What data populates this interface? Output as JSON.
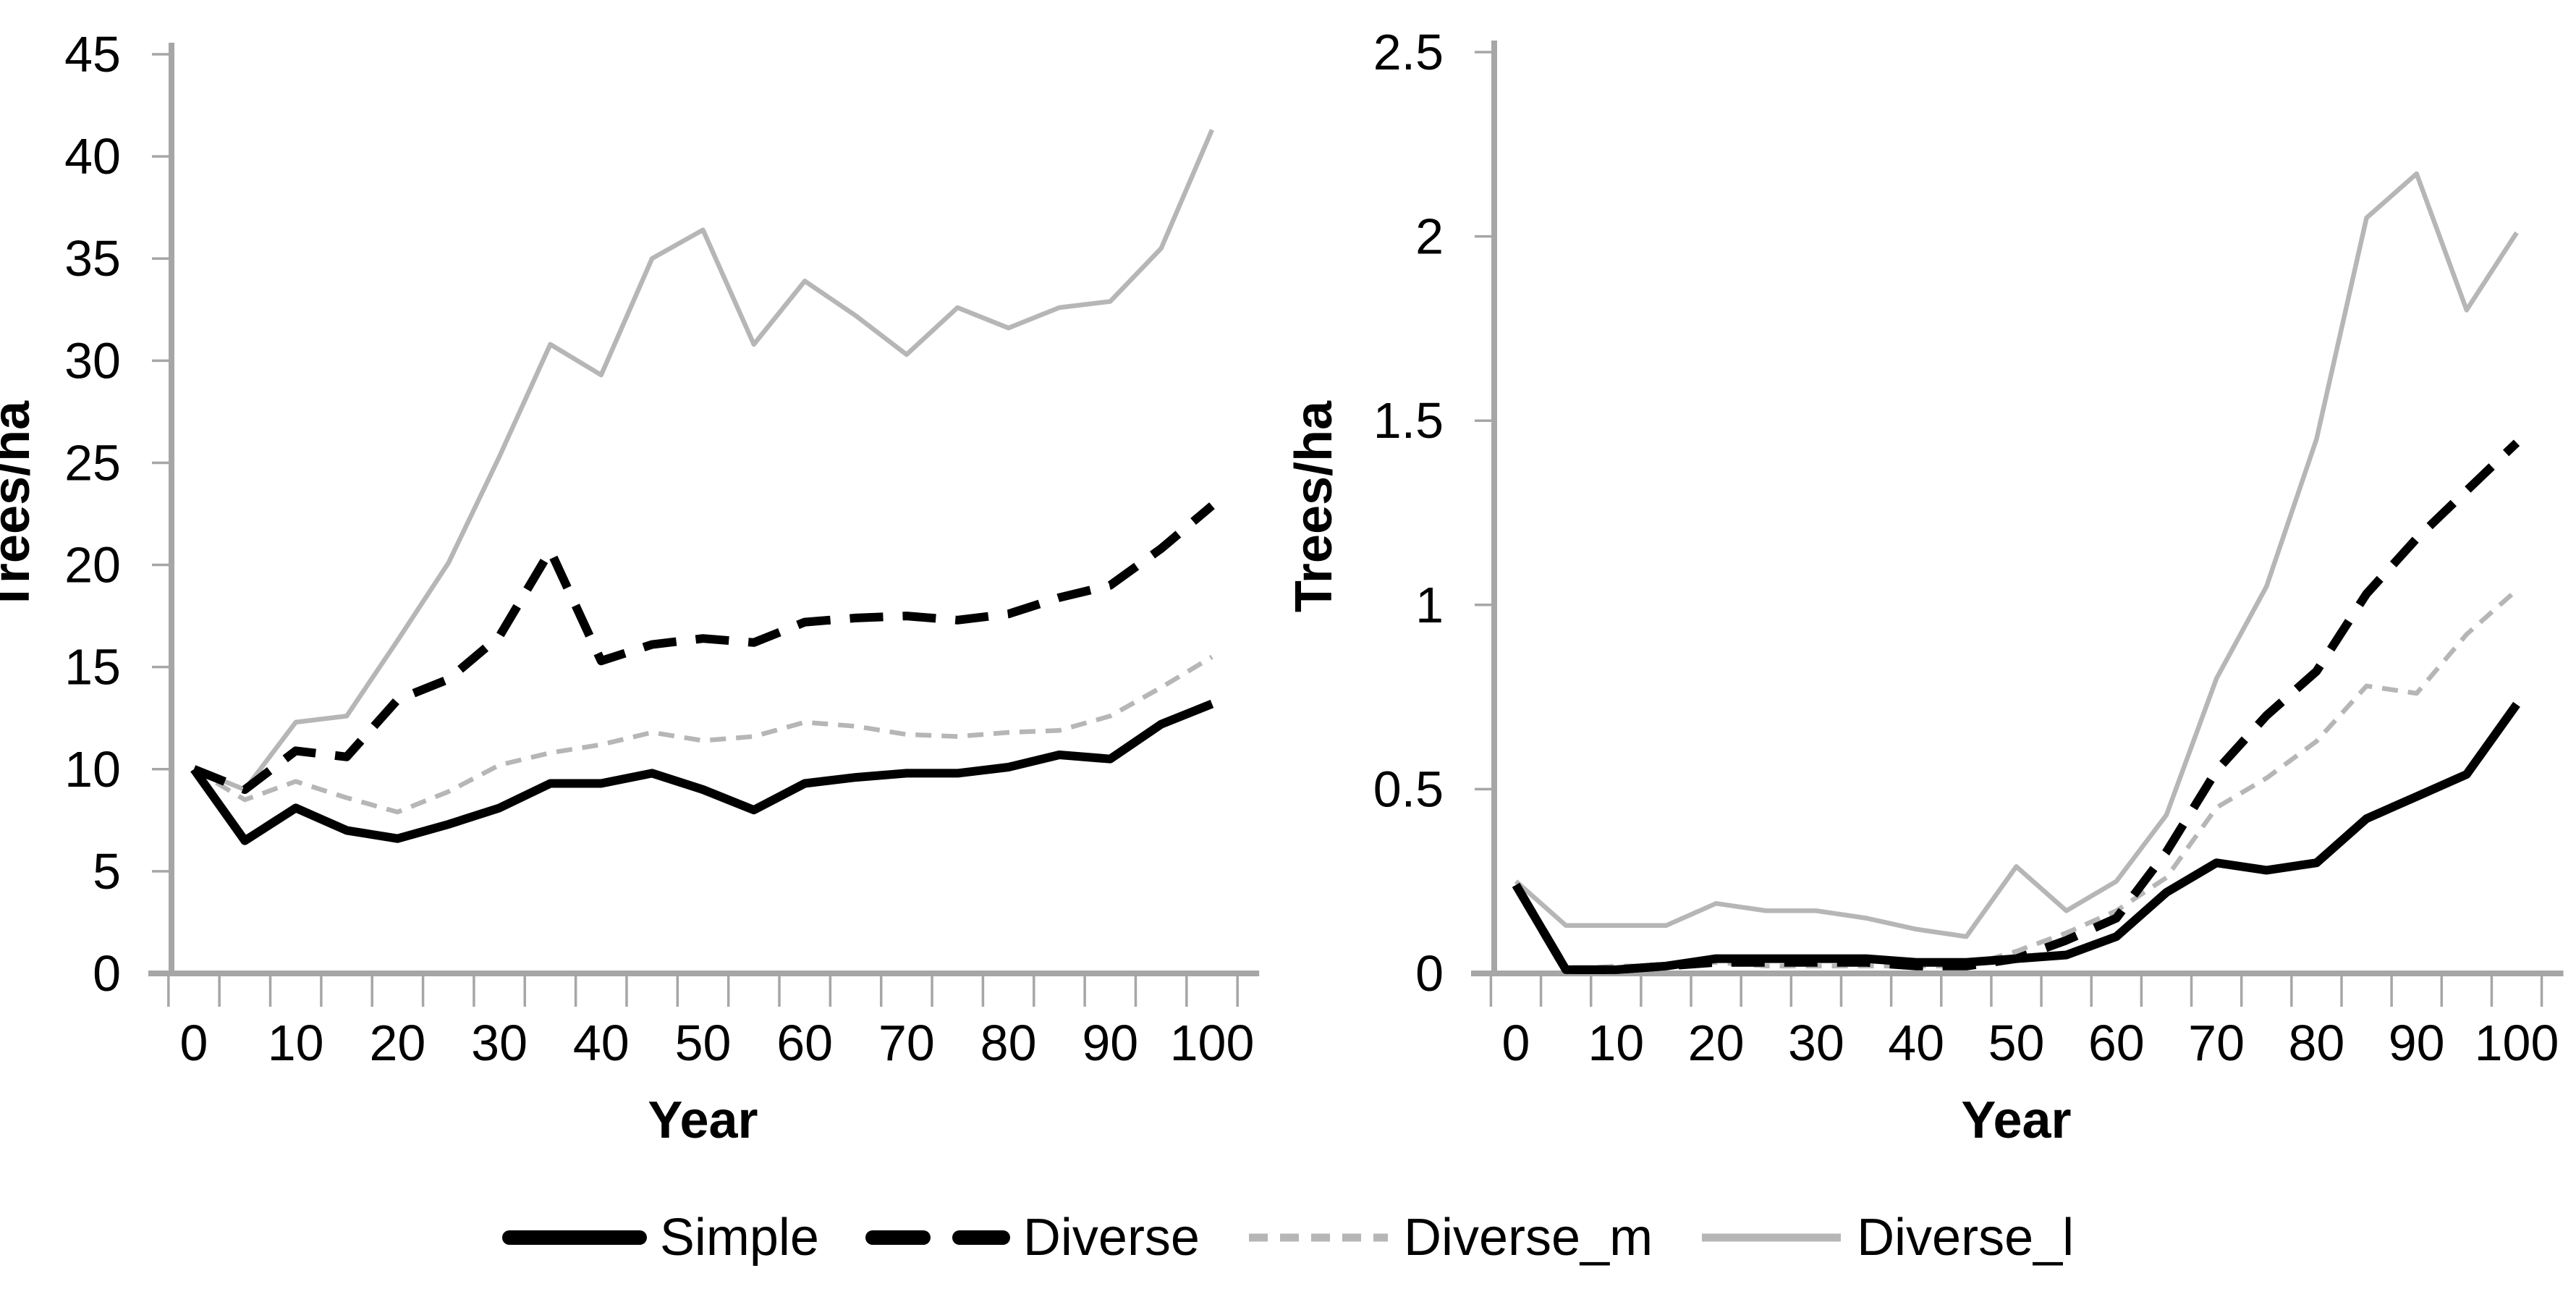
{
  "figure": {
    "background": "#ffffff"
  },
  "axis_style": {
    "axis_color": "#a6a6a6",
    "tick_color": "#a6a6a6",
    "tick_label_color": "#000000"
  },
  "chart_data": {
    "type": "line",
    "xlabel": "Year",
    "ylabel": "Trees/ha",
    "grid": false,
    "legend": {
      "position": "bottom",
      "entries": [
        "Simple",
        "Diverse",
        "Diverse_m",
        "Diverse_l"
      ]
    },
    "x": [
      0,
      5,
      10,
      15,
      20,
      25,
      30,
      35,
      40,
      45,
      50,
      55,
      60,
      65,
      70,
      75,
      80,
      85,
      90,
      95,
      100
    ],
    "xtick_labels": [
      "0",
      "10",
      "20",
      "30",
      "40",
      "50",
      "60",
      "70",
      "80",
      "90",
      "100"
    ],
    "series_styles": [
      {
        "name": "Simple",
        "color": "#000000",
        "line_style": "solid",
        "weight": "thick"
      },
      {
        "name": "Diverse",
        "color": "#000000",
        "line_style": "dashed",
        "weight": "thick"
      },
      {
        "name": "Diverse_m",
        "color": "#b6b6b6",
        "line_style": "dashed",
        "weight": "thin"
      },
      {
        "name": "Diverse_l",
        "color": "#b6b6b6",
        "line_style": "solid",
        "weight": "thin"
      }
    ],
    "charts": [
      {
        "id": "left",
        "ylabel": "Trees/ha",
        "xlabel": "Year",
        "ylim": [
          0,
          45
        ],
        "ytick_labels": [
          "0",
          "5",
          "10",
          "15",
          "20",
          "25",
          "30",
          "35",
          "40",
          "45"
        ],
        "series": [
          {
            "name": "Simple",
            "values": [
              10,
              6.5,
              8.1,
              7.0,
              6.6,
              7.3,
              8.1,
              9.3,
              9.3,
              9.8,
              9.0,
              8.0,
              9.3,
              9.6,
              9.8,
              9.8,
              10.1,
              10.7,
              10.5,
              12.2,
              13.2
            ]
          },
          {
            "name": "Diverse",
            "values": [
              10,
              9.0,
              10.9,
              10.6,
              13.4,
              14.4,
              16.5,
              20.7,
              15.3,
              16.1,
              16.4,
              16.2,
              17.2,
              17.4,
              17.5,
              17.3,
              17.6,
              18.4,
              19.0,
              20.8,
              22.9
            ]
          },
          {
            "name": "Diverse_m",
            "values": [
              10,
              8.5,
              9.4,
              8.6,
              7.9,
              8.9,
              10.2,
              10.8,
              11.2,
              11.8,
              11.4,
              11.6,
              12.3,
              12.1,
              11.7,
              11.6,
              11.8,
              11.9,
              12.6,
              14.0,
              15.5
            ]
          },
          {
            "name": "Diverse_l",
            "values": [
              10,
              9.0,
              12.3,
              12.6,
              16.3,
              20.1,
              25.3,
              30.8,
              29.3,
              35.0,
              36.4,
              30.8,
              33.9,
              32.2,
              30.3,
              32.6,
              31.6,
              32.6,
              32.9,
              35.5,
              41.3
            ]
          }
        ]
      },
      {
        "id": "right",
        "ylabel": "Trees/ha",
        "xlabel": "Year",
        "ylim": [
          0,
          2.5
        ],
        "ytick_labels": [
          "0",
          "0.5",
          "1",
          "1.5",
          "2",
          "2.5"
        ],
        "series": [
          {
            "name": "Simple",
            "values": [
              0.24,
              0.01,
              0.01,
              0.02,
              0.04,
              0.04,
              0.04,
              0.04,
              0.03,
              0.03,
              0.04,
              0.05,
              0.1,
              0.22,
              0.3,
              0.28,
              0.3,
              0.42,
              0.48,
              0.54,
              0.73
            ]
          },
          {
            "name": "Diverse",
            "values": [
              0.24,
              0.01,
              0.01,
              0.02,
              0.03,
              0.03,
              0.03,
              0.03,
              0.02,
              0.02,
              0.04,
              0.09,
              0.15,
              0.33,
              0.55,
              0.7,
              0.82,
              1.03,
              1.18,
              1.31,
              1.44
            ]
          },
          {
            "name": "Diverse_m",
            "values": [
              0.24,
              0.01,
              0.02,
              0.02,
              0.03,
              0.02,
              0.02,
              0.02,
              0.02,
              0.02,
              0.06,
              0.11,
              0.17,
              0.26,
              0.45,
              0.53,
              0.63,
              0.78,
              0.76,
              0.92,
              1.04
            ]
          },
          {
            "name": "Diverse_l",
            "values": [
              0.25,
              0.13,
              0.13,
              0.13,
              0.19,
              0.17,
              0.17,
              0.15,
              0.12,
              0.1,
              0.29,
              0.17,
              0.25,
              0.43,
              0.8,
              1.05,
              1.45,
              2.05,
              2.17,
              1.8,
              2.01
            ]
          }
        ]
      }
    ]
  }
}
